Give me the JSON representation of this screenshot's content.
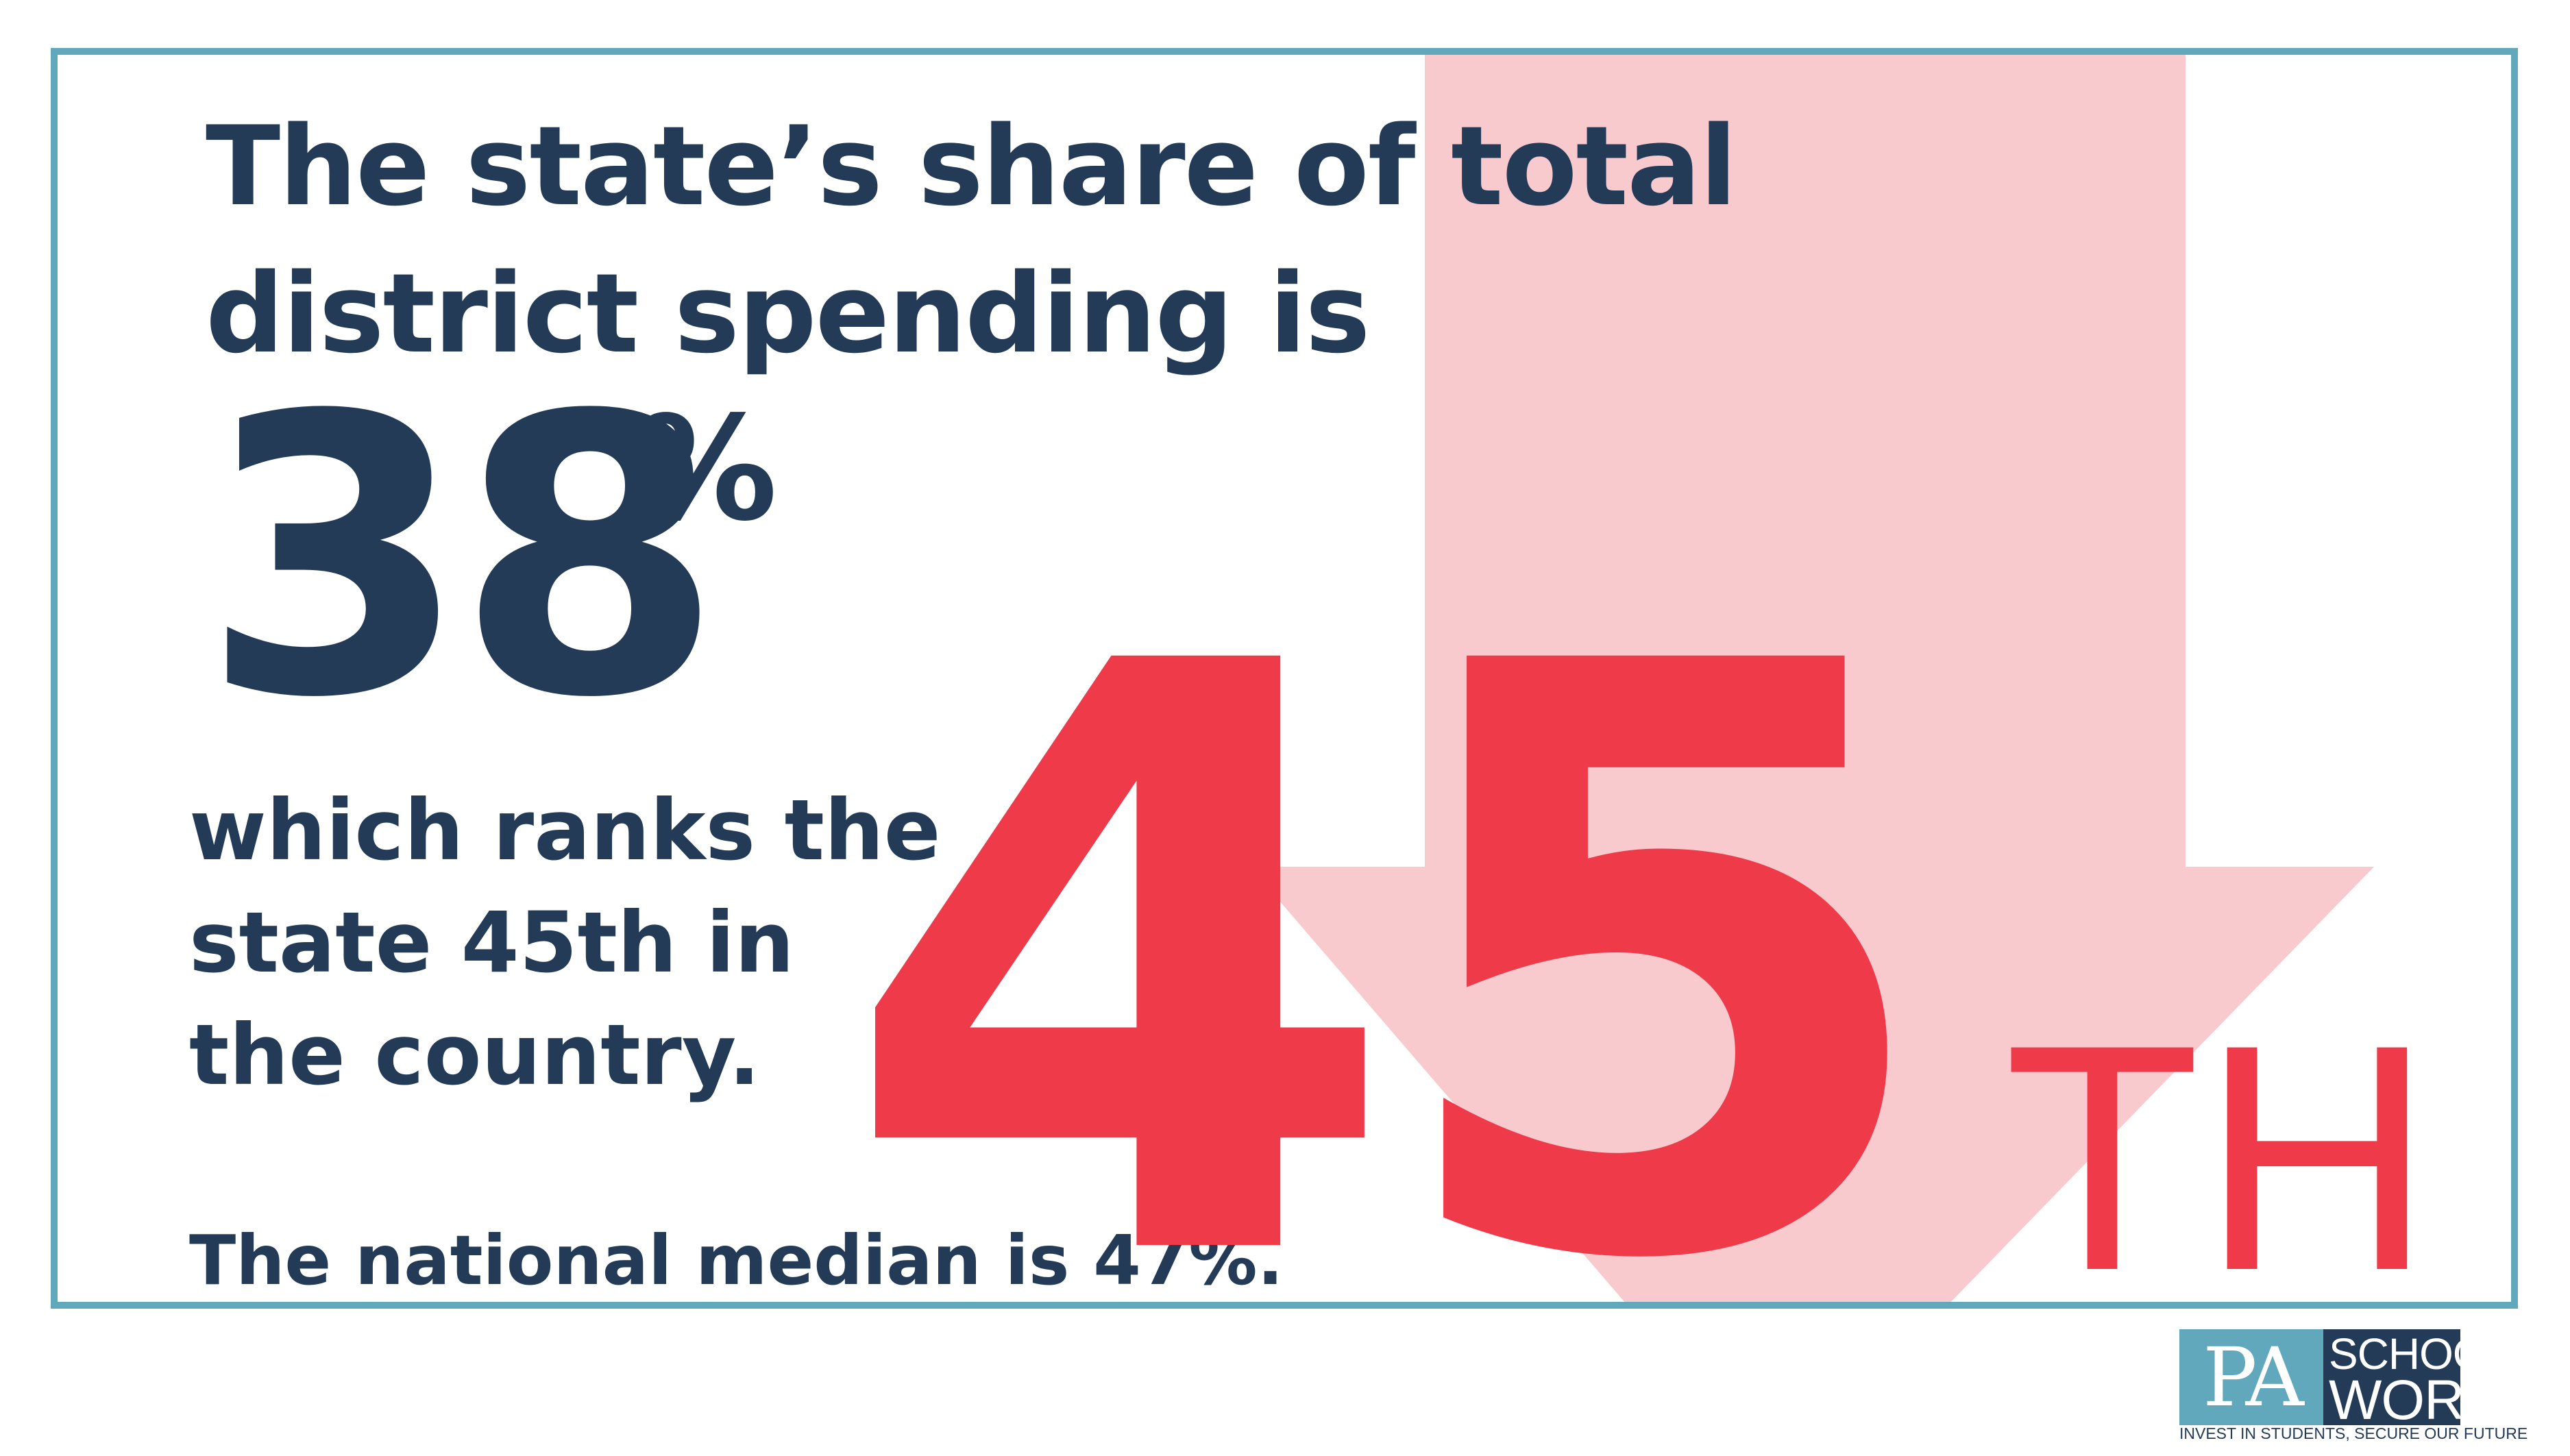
{
  "headline": {
    "line1": "The state’s share of total",
    "line2": "district spending is"
  },
  "share": {
    "value": "38",
    "unit": "%"
  },
  "rank_text": {
    "line1": "which ranks the",
    "line2": "state 45th in",
    "line3": "the country."
  },
  "median_text": "The national median is 47%.",
  "rank": {
    "value": "45",
    "suffix": "TH"
  },
  "logo": {
    "pa": "PA",
    "schools": "SCHOOLS",
    "work": "WORK",
    "tagline": "INVEST IN STUDENTS, SECURE OUR FUTURE"
  },
  "colors": {
    "navy": "#233b57",
    "red": "#ee3a49",
    "pink_arrow": "#f8c9cd",
    "frame_teal": "#62a8bd"
  },
  "icons": {
    "arrow": "down-arrow-icon"
  }
}
